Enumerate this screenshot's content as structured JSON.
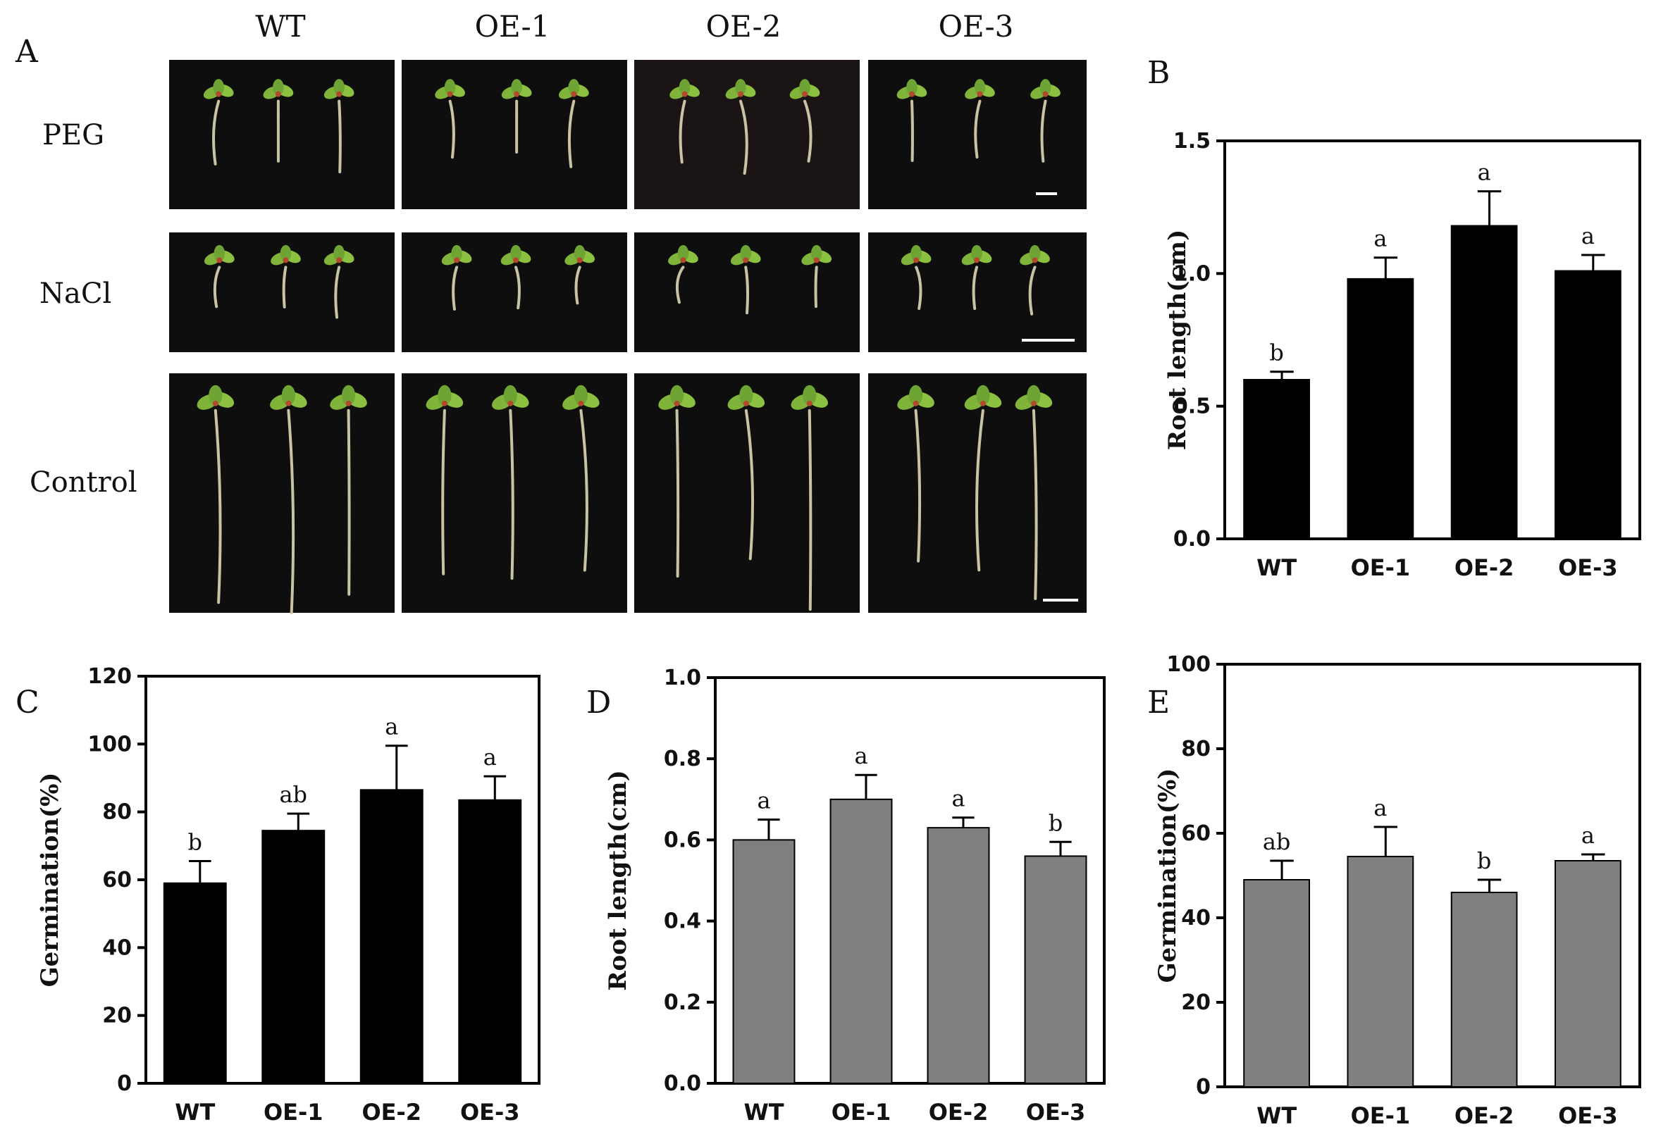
{
  "panel_a": {
    "label": "A",
    "columns": [
      "WT",
      "OE-1",
      "OE-2",
      "OE-3"
    ],
    "rows": [
      "PEG",
      "NaCl",
      "Control"
    ]
  },
  "chart_data": [
    {
      "panel": "B",
      "type": "bar",
      "categories": [
        "WT",
        "OE-1",
        "OE-2",
        "OE-3"
      ],
      "values": [
        0.6,
        0.98,
        1.18,
        1.01
      ],
      "errors": [
        0.03,
        0.08,
        0.13,
        0.06
      ],
      "significance": [
        "b",
        "a",
        "a",
        "a"
      ],
      "ylabel": "Root length(cm)",
      "ylim": [
        0,
        1.5
      ],
      "yticks": [
        "0.0",
        "0.5",
        "1.0",
        "1.5"
      ],
      "bar_color": "#000000"
    },
    {
      "panel": "C",
      "type": "bar",
      "categories": [
        "WT",
        "OE-1",
        "OE-2",
        "OE-3"
      ],
      "values": [
        59,
        74.5,
        86.5,
        83.5
      ],
      "errors": [
        6.5,
        5,
        13,
        7
      ],
      "significance": [
        "b",
        "ab",
        "a",
        "a"
      ],
      "ylabel": "Germination(%)",
      "ylim": [
        0,
        120
      ],
      "yticks": [
        "0",
        "20",
        "40",
        "60",
        "80",
        "100",
        "120"
      ],
      "bar_color": "#000000"
    },
    {
      "panel": "D",
      "type": "bar",
      "categories": [
        "WT",
        "OE-1",
        "OE-2",
        "OE-3"
      ],
      "values": [
        0.6,
        0.7,
        0.63,
        0.56
      ],
      "errors": [
        0.05,
        0.06,
        0.025,
        0.035
      ],
      "significance": [
        "a",
        "a",
        "a",
        "b"
      ],
      "ylabel": "Root length(cm)",
      "ylim": [
        0,
        1.0
      ],
      "yticks": [
        "0.0",
        "0.2",
        "0.4",
        "0.6",
        "0.8",
        "1.0"
      ],
      "bar_color": "#808080"
    },
    {
      "panel": "E",
      "type": "bar",
      "categories": [
        "WT",
        "OE-1",
        "OE-2",
        "OE-3"
      ],
      "values": [
        49,
        54.5,
        46,
        53.5
      ],
      "errors": [
        4.5,
        7,
        3,
        1.5
      ],
      "significance": [
        "ab",
        "a",
        "b",
        "a"
      ],
      "ylabel": "Germination(%)",
      "ylim": [
        0,
        100
      ],
      "yticks": [
        "0",
        "20",
        "40",
        "60",
        "80",
        "100"
      ],
      "bar_color": "#808080"
    }
  ]
}
